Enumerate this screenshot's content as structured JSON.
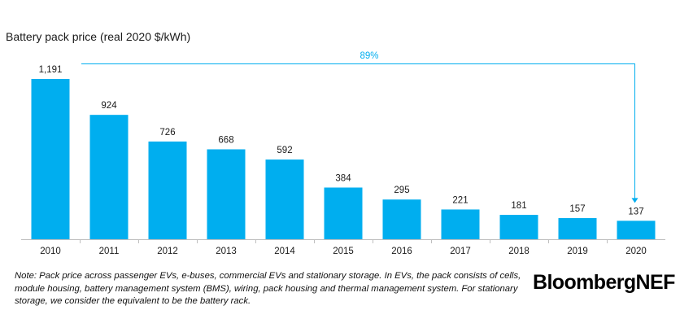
{
  "chart_data": {
    "type": "bar",
    "ylabel": "Battery pack price (real 2020 $/kWh)",
    "categories": [
      "2010",
      "2011",
      "2012",
      "2013",
      "2014",
      "2015",
      "2016",
      "2017",
      "2018",
      "2019",
      "2020"
    ],
    "values": [
      1191,
      924,
      726,
      668,
      592,
      384,
      295,
      221,
      181,
      157,
      137
    ],
    "value_labels": [
      "1,191",
      "924",
      "726",
      "668",
      "592",
      "384",
      "295",
      "221",
      "181",
      "157",
      "137"
    ],
    "annotation": "89%",
    "ylim": [
      0,
      1191
    ],
    "grid": false,
    "colors": {
      "bar": "#00AEEF",
      "annotation": "#00AEEF",
      "axis": "#bfbfbf"
    }
  },
  "footer": {
    "note": "Note: Pack price across passenger EVs, e-buses, commercial EVs and stationary storage. In EVs, the pack consists of cells, module housing, battery management system (BMS), wiring, pack housing and thermal management system. For stationary storage, we consider the equivalent to be the battery rack.",
    "logo_main": "Bloomberg",
    "logo_suffix": "NEF"
  }
}
